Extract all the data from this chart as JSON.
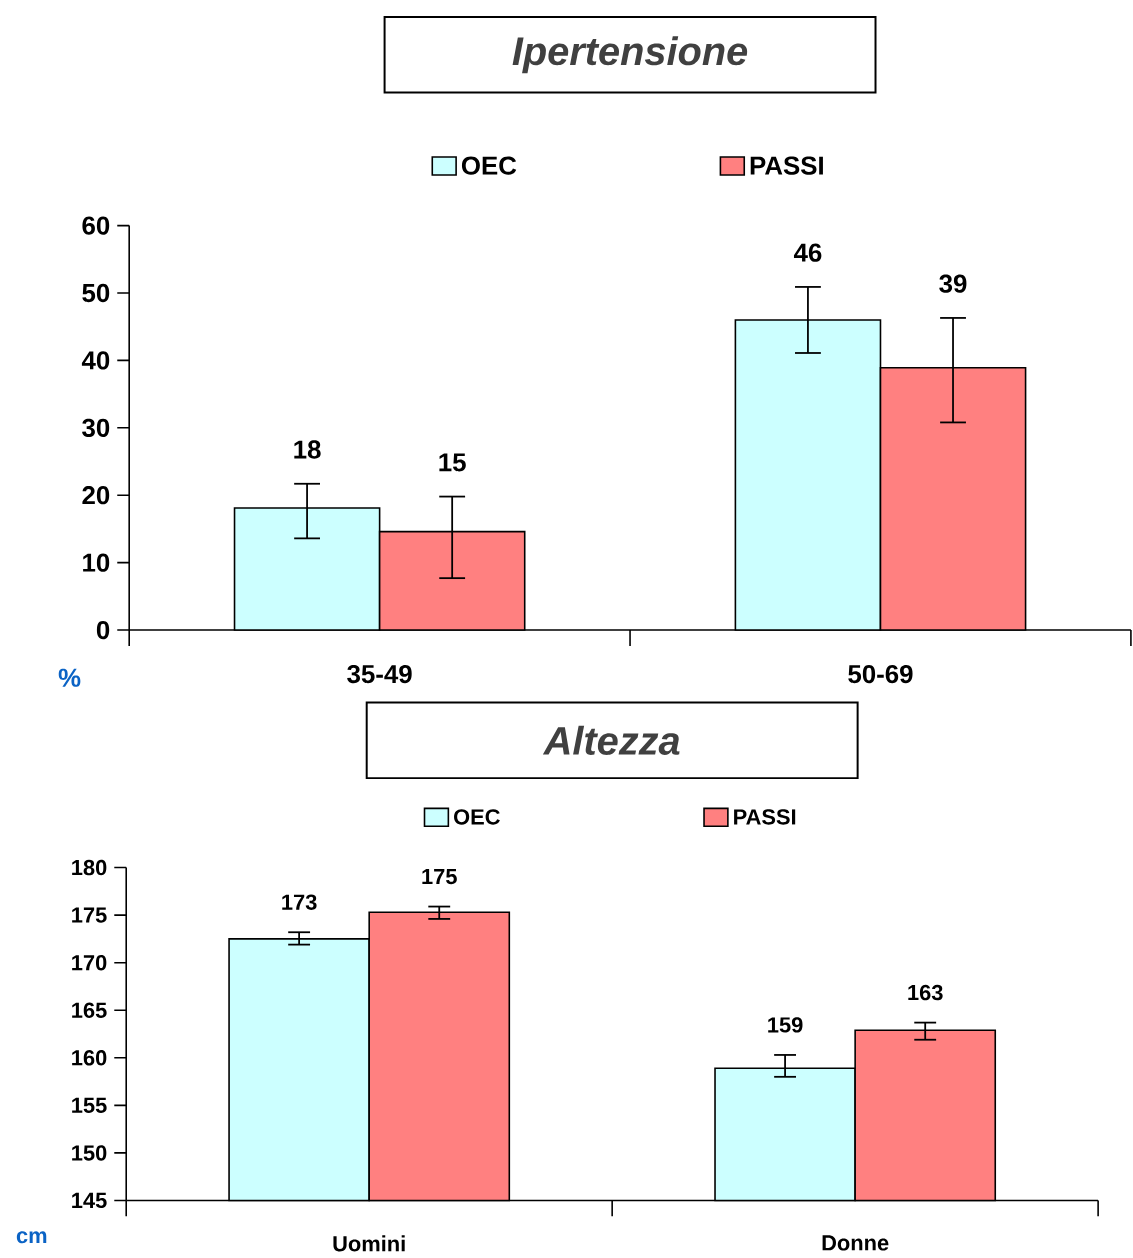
{
  "chart_data": [
    {
      "type": "bar",
      "title": "Ipertensione",
      "ylabel": "%",
      "categories": [
        "35-49",
        "50-69"
      ],
      "series": [
        {
          "name": "OEC",
          "color": "#ccffff",
          "values": [
            18.1,
            46.0
          ],
          "errors": [
            [
              13.6,
              21.7
            ],
            [
              41.1,
              50.9
            ]
          ],
          "value_labels": [
            "18",
            "46"
          ]
        },
        {
          "name": "PASSI",
          "color": "#ff8080",
          "values": [
            14.6,
            38.9
          ],
          "errors": [
            [
              7.7,
              19.8
            ],
            [
              30.8,
              46.3
            ]
          ],
          "value_labels": [
            "15",
            "39"
          ]
        }
      ],
      "ylim": [
        0,
        60
      ],
      "yticks": [
        0,
        10,
        20,
        30,
        40,
        50,
        60
      ],
      "legend": "top"
    },
    {
      "type": "bar",
      "title": "Altezza",
      "ylabel": "cm",
      "categories": [
        "Uomini",
        "Donne"
      ],
      "series": [
        {
          "name": "OEC",
          "color": "#ccffff",
          "values": [
            172.5,
            158.9
          ],
          "errors": [
            [
              171.9,
              173.2
            ],
            [
              158.0,
              160.3
            ]
          ],
          "value_labels": [
            "173",
            "159"
          ]
        },
        {
          "name": "PASSI",
          "color": "#ff8080",
          "values": [
            175.3,
            162.9
          ],
          "errors": [
            [
              174.6,
              175.9
            ],
            [
              161.9,
              163.7
            ]
          ],
          "value_labels": [
            "175",
            "163"
          ]
        }
      ],
      "ylim": [
        145,
        180
      ],
      "yticks": [
        145,
        150,
        155,
        160,
        165,
        170,
        175,
        180
      ],
      "legend": "top"
    }
  ]
}
